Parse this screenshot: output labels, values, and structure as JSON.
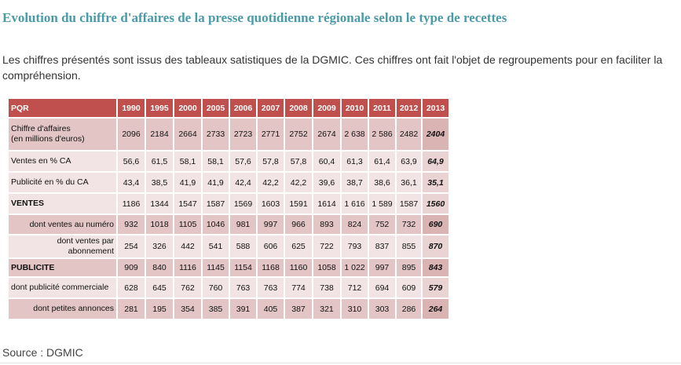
{
  "title": "Evolution du chiffre d'affaires de la presse quotidienne régionale selon le type de recettes",
  "intro": "Les chiffres présentés sont issus des tableaux satistiques de la DGMIC. Ces chiffres ont fait l'objet de regroupements pour en faciliter la compréhension.",
  "table": {
    "header_label": "PQR",
    "years": [
      "1990",
      "1995",
      "2000",
      "2005",
      "2006",
      "2007",
      "2008",
      "2009",
      "2010",
      "2011",
      "2012",
      "2013"
    ],
    "rows": [
      {
        "label": "Chiffre d'affaires\n(en millions d'euros)",
        "values": [
          "2096",
          "2184",
          "2664",
          "2733",
          "2723",
          "2771",
          "2752",
          "2674",
          "2 638",
          "2 586",
          "2482",
          "2404"
        ]
      },
      {
        "label": "Ventes en % CA",
        "values": [
          "56,6",
          "61,5",
          "58,1",
          "58,1",
          "57,6",
          "57,8",
          "57,8",
          "60,4",
          "61,3",
          "61,4",
          "63,9",
          "64,9"
        ]
      },
      {
        "label": "Publicité en % du CA",
        "values": [
          "43,4",
          "38,5",
          "41,9",
          "41,9",
          "42,4",
          "42,2",
          "42,2",
          "39,6",
          "38,7",
          "38,6",
          "36,1",
          "35,1"
        ]
      },
      {
        "label": "VENTES",
        "values": [
          "1186",
          "1344",
          "1547",
          "1587",
          "1569",
          "1603",
          "1591",
          "1614",
          "1 616",
          "1 589",
          "1587",
          "1560"
        ]
      },
      {
        "label": "dont ventes au numéro",
        "values": [
          "932",
          "1018",
          "1105",
          "1046",
          "981",
          "997",
          "966",
          "893",
          "824",
          "752",
          "732",
          "690"
        ]
      },
      {
        "label": "dont ventes par\nabonnement",
        "values": [
          "254",
          "326",
          "442",
          "541",
          "588",
          "606",
          "625",
          "722",
          "793",
          "837",
          "855",
          "870"
        ]
      },
      {
        "label": "PUBLICITE",
        "values": [
          "909",
          "840",
          "1116",
          "1145",
          "1154",
          "1168",
          "1160",
          "1058",
          "1 022",
          "997",
          "895",
          "843"
        ]
      },
      {
        "label": "dont publicité commerciale",
        "values": [
          "628",
          "645",
          "762",
          "760",
          "763",
          "763",
          "774",
          "738",
          "712",
          "694",
          "609",
          "579"
        ]
      },
      {
        "label": "dont petites annonces",
        "values": [
          "281",
          "195",
          "354",
          "385",
          "391",
          "405",
          "387",
          "321",
          "310",
          "303",
          "286",
          "264"
        ]
      }
    ]
  },
  "source": "Source : DGMIC",
  "colors": {
    "title": "#4a9aa8",
    "header_bg": "#c0504d",
    "row_dark": "#e3c5c5",
    "row_light": "#f2e4e4"
  }
}
